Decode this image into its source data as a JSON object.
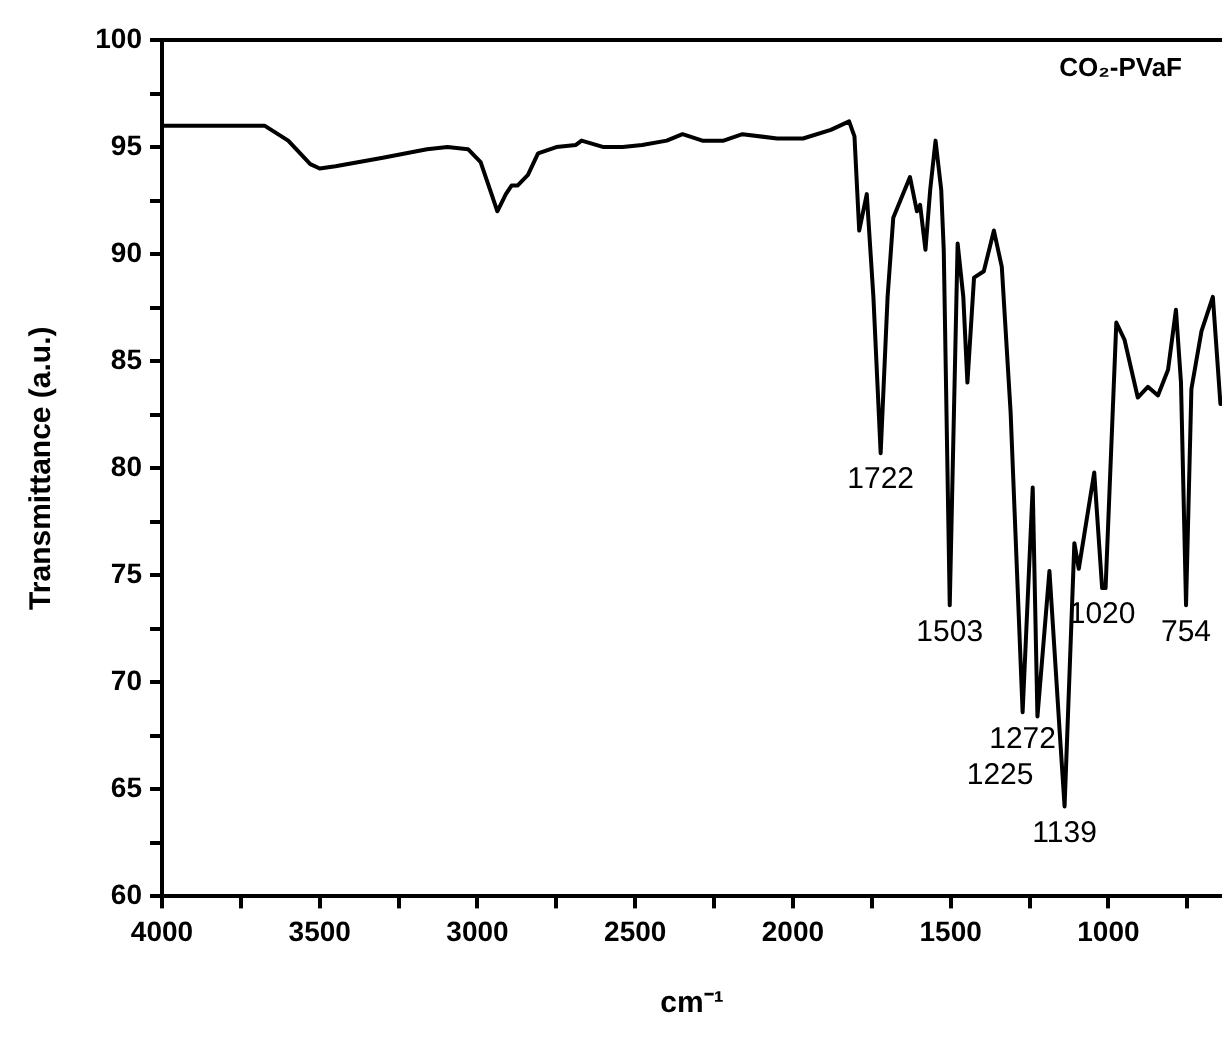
{
  "chart_data": {
    "type": "line",
    "title": "CO₂-PVaF",
    "xlabel": "cm⁻¹",
    "ylabel": "Transmittance (a.u.)",
    "xlim": [
      4000,
      640
    ],
    "xticks": [
      4000,
      {
        "value": 3750,
        "label": null
      },
      3500,
      {
        "value": 3250,
        "label": null
      },
      3000,
      {
        "value": 2750,
        "label": null
      },
      2500,
      {
        "value": 2250,
        "label": null
      },
      2000,
      {
        "value": 1750,
        "label": null
      },
      1500,
      {
        "value": 1250,
        "label": null
      },
      1000,
      {
        "value": 750,
        "label": null
      }
    ],
    "ylim": [
      60,
      100
    ],
    "yticks": [
      60,
      {
        "value": 62.5,
        "label": null
      },
      65,
      {
        "value": 67.5,
        "label": null
      },
      70,
      {
        "value": 72.5,
        "label": null
      },
      75,
      {
        "value": 77.5,
        "label": null
      },
      80,
      {
        "value": 82.5,
        "label": null
      },
      85,
      {
        "value": 87.5,
        "label": null
      },
      90,
      {
        "value": 92.5,
        "label": null
      },
      95,
      {
        "value": 97.5,
        "label": null
      },
      100
    ],
    "legend": false,
    "marker": "none",
    "line_style": "solid",
    "series": [
      {
        "color": "#000000",
        "x": [
          4000,
          3800,
          3675,
          3600,
          3530,
          3500,
          3450,
          3300,
          3160,
          3095,
          3030,
          2990,
          2960,
          2937,
          2910,
          2892,
          2873,
          2840,
          2808,
          2750,
          2688,
          2670,
          2600,
          2540,
          2478,
          2400,
          2350,
          2287,
          2220,
          2160,
          2050,
          1968,
          1880,
          1822,
          1805,
          1790,
          1766,
          1745,
          1722,
          1700,
          1682,
          1629,
          1607,
          1597,
          1580,
          1565,
          1548,
          1530,
          1522,
          1503,
          1478,
          1460,
          1447,
          1426,
          1395,
          1363,
          1338,
          1310,
          1272,
          1240,
          1225,
          1187,
          1155,
          1139,
          1108,
          1094,
          1045,
          1020,
          1009,
          975,
          949,
          907,
          875,
          843,
          811,
          786,
          770,
          754,
          737,
          705,
          669,
          645
        ],
        "values": [
          96,
          96,
          96,
          95.3,
          94.2,
          94.0,
          94.1,
          94.5,
          94.9,
          95.0,
          94.9,
          94.3,
          93.0,
          92.0,
          92.8,
          93.2,
          93.2,
          93.7,
          94.7,
          95.0,
          95.1,
          95.3,
          95.0,
          95.0,
          95.1,
          95.3,
          95.6,
          95.3,
          95.3,
          95.6,
          95.4,
          95.4,
          95.8,
          96.2,
          95.5,
          91.1,
          92.8,
          88,
          80.7,
          88,
          91.7,
          93.6,
          92.0,
          92.3,
          90.2,
          93,
          95.3,
          93,
          90.2,
          73.6,
          90.5,
          88,
          84.0,
          88.9,
          89.2,
          91.1,
          89.4,
          82.6,
          68.6,
          79.1,
          68.4,
          75.2,
          67.8,
          64.2,
          76.5,
          75.3,
          79.8,
          74.4,
          74.4,
          86.8,
          86.0,
          83.3,
          83.8,
          83.4,
          84.6,
          87.4,
          84,
          73.6,
          83.7,
          86.4,
          88.0,
          83.0
        ]
      }
    ],
    "annotations": [
      {
        "text": "1722",
        "x": 1722,
        "y": 80.7
      },
      {
        "text": "1503",
        "x": 1503,
        "y": 73.6
      },
      {
        "text": "1272",
        "x": 1272,
        "y": 68.6
      },
      {
        "text": "1225",
        "x": 1225,
        "y": 68.4
      },
      {
        "text": "1139",
        "x": 1139,
        "y": 64.2
      },
      {
        "text": "1020",
        "x": 1020,
        "y": 74.4
      },
      {
        "text": "754",
        "x": 754,
        "y": 73.6
      }
    ]
  }
}
